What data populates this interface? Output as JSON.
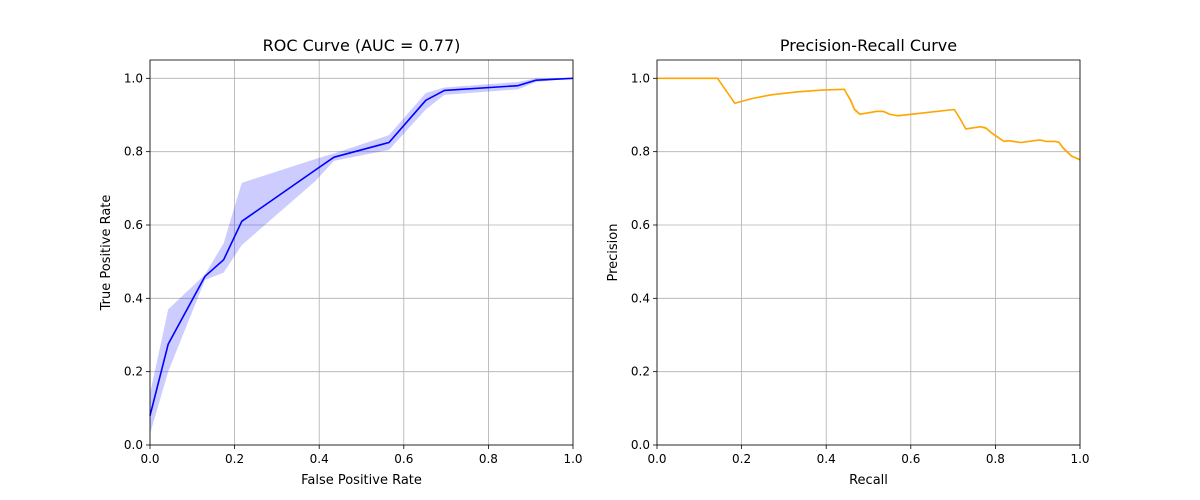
{
  "chart_data": [
    {
      "type": "line",
      "title": "ROC Curve (AUC = 0.77)",
      "xlabel": "False Positive Rate",
      "ylabel": "True Positive Rate",
      "xlim": [
        0,
        1
      ],
      "ylim": [
        0,
        1.05
      ],
      "xticks": [
        "0.0",
        "0.2",
        "0.4",
        "0.6",
        "0.8",
        "1.0"
      ],
      "yticks": [
        "0.0",
        "0.2",
        "0.4",
        "0.6",
        "0.8",
        "1.0"
      ],
      "grid": true,
      "line_color": "#0000ff",
      "band_color": "#0000ff",
      "series": [
        {
          "x": [
            0.0,
            0.043,
            0.13,
            0.174,
            0.217,
            0.391,
            0.435,
            0.565,
            0.652,
            0.696,
            0.87,
            0.913,
            1.0
          ],
          "y": [
            0.08,
            0.275,
            0.46,
            0.505,
            0.61,
            0.75,
            0.785,
            0.825,
            0.94,
            0.967,
            0.98,
            0.995,
            1.0
          ],
          "lower": [
            0.03,
            0.2,
            0.45,
            0.47,
            0.545,
            0.72,
            0.775,
            0.805,
            0.915,
            0.955,
            0.97,
            0.99,
            1.0
          ],
          "upper": [
            0.14,
            0.37,
            0.465,
            0.55,
            0.715,
            0.78,
            0.795,
            0.845,
            0.96,
            0.975,
            0.99,
            1.0,
            1.0
          ]
        }
      ]
    },
    {
      "type": "line",
      "title": "Precision-Recall Curve",
      "xlabel": "Recall",
      "ylabel": "Precision",
      "xlim": [
        0,
        1
      ],
      "ylim": [
        0,
        1.05
      ],
      "xticks": [
        "0.0",
        "0.2",
        "0.4",
        "0.6",
        "0.8",
        "1.0"
      ],
      "yticks": [
        "0.0",
        "0.2",
        "0.4",
        "0.6",
        "0.8",
        "1.0"
      ],
      "grid": true,
      "line_color": "#ffa500",
      "band_color": "#ffa500",
      "series": [
        {
          "x": [
            0.0,
            0.143,
            0.184,
            0.225,
            0.27,
            0.33,
            0.39,
            0.443,
            0.45,
            0.458,
            0.467,
            0.48,
            0.52,
            0.535,
            0.55,
            0.57,
            0.6,
            0.703,
            0.72,
            0.73,
            0.765,
            0.778,
            0.79,
            0.81,
            0.82,
            0.83,
            0.86,
            0.905,
            0.92,
            0.94,
            0.95,
            0.96,
            0.98,
            1.0
          ],
          "y": [
            1.0,
            1.0,
            0.932,
            0.945,
            0.955,
            0.963,
            0.968,
            0.97,
            0.955,
            0.94,
            0.915,
            0.902,
            0.91,
            0.91,
            0.902,
            0.898,
            0.902,
            0.915,
            0.883,
            0.862,
            0.868,
            0.864,
            0.852,
            0.836,
            0.828,
            0.83,
            0.825,
            0.832,
            0.828,
            0.828,
            0.826,
            0.81,
            0.788,
            0.778
          ],
          "lower": [
            1.0,
            1.0,
            0.932,
            0.945,
            0.955,
            0.963,
            0.968,
            0.968,
            0.95,
            0.93,
            0.905,
            0.9,
            0.908,
            0.906,
            0.9,
            0.895,
            0.9,
            0.913,
            0.878,
            0.86,
            0.865,
            0.86,
            0.848,
            0.832,
            0.826,
            0.828,
            0.823,
            0.83,
            0.826,
            0.826,
            0.823,
            0.805,
            0.784,
            0.775
          ],
          "upper": [
            1.0,
            1.0,
            0.932,
            0.945,
            0.955,
            0.963,
            0.968,
            0.972,
            0.96,
            0.945,
            0.92,
            0.905,
            0.912,
            0.912,
            0.904,
            0.9,
            0.904,
            0.917,
            0.886,
            0.864,
            0.871,
            0.868,
            0.856,
            0.84,
            0.83,
            0.832,
            0.827,
            0.834,
            0.83,
            0.83,
            0.829,
            0.815,
            0.792,
            0.781
          ]
        }
      ]
    }
  ]
}
